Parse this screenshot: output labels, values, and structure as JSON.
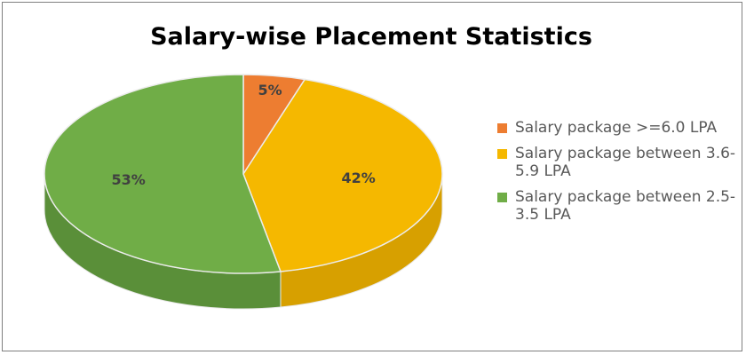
{
  "chart_data": {
    "type": "pie",
    "title": "Salary-wise Placement Statistics",
    "three_d": true,
    "legend_position": "right",
    "slices": [
      {
        "label": "Salary package >=6.0 LPA",
        "value": 5,
        "value_label": "5%",
        "color": "#ED7D31",
        "side_color": "#C0622A"
      },
      {
        "label": "Salary package between 3.6-5.9 LPA",
        "value": 42,
        "value_label": "42%",
        "color": "#F5B800",
        "side_color": "#D7A000"
      },
      {
        "label": "Salary package between 2.5-3.5 LPA",
        "value": 53,
        "value_label": "53%",
        "color": "#70AD47",
        "side_color": "#5A8F39"
      }
    ]
  }
}
